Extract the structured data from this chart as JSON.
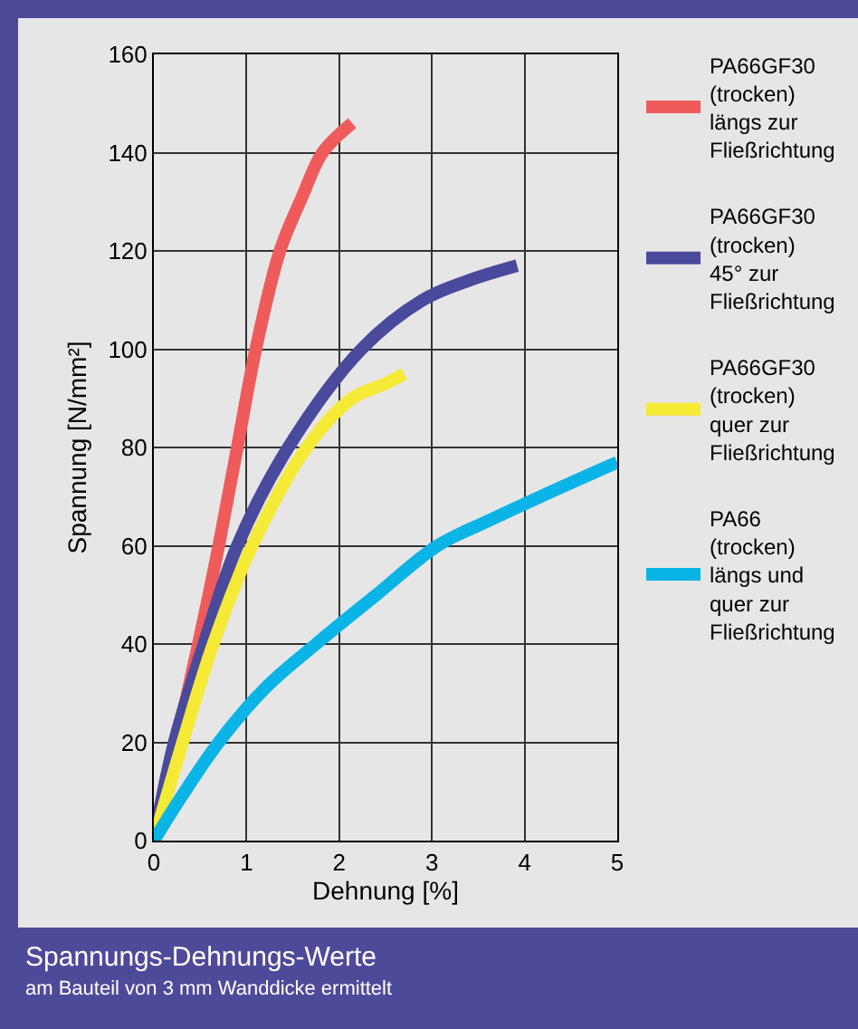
{
  "chart_data": {
    "type": "line",
    "title": "Spannungs-Dehnungs-Werte",
    "subtitle": "am Bauteil von 3 mm Wanddicke ermittelt",
    "xlabel": "Dehnung [%]",
    "ylabel": "Spannung [N/mm²]",
    "xlim": [
      0,
      5
    ],
    "xticks": [
      0,
      1,
      2,
      3,
      4,
      5
    ],
    "ylim": [
      0,
      160
    ],
    "yticks": [
      0,
      20,
      40,
      60,
      80,
      100,
      120,
      140,
      160
    ],
    "grid": true,
    "legend": "right",
    "marker": "none",
    "line_style": "solid",
    "series": [
      {
        "name": "PA66GF30\n(trocken)\nlängs zur\nFließrichtung",
        "color": "#ef5b5b",
        "x": [
          0,
          0.48,
          0.7,
          0.9,
          1.1,
          1.36,
          1.6,
          1.82,
          2.14
        ],
        "values": [
          0,
          40,
          60,
          80,
          100,
          120,
          131,
          140,
          146
        ]
      },
      {
        "name": "PA66GF30\n(trocken)\n45° zur\nFließrichtung",
        "color": "#4a4a9c",
        "x": [
          0,
          0.22,
          0.54,
          0.9,
          1.45,
          2.24,
          2.9,
          3.4,
          3.92
        ],
        "values": [
          0,
          20,
          40,
          60,
          80,
          100,
          110,
          114,
          117
        ]
      },
      {
        "name": "PA66GF30\n(trocken)\nquer zur\nFließrichtung",
        "color": "#f5ea36",
        "x": [
          0,
          0.31,
          0.64,
          1.06,
          1.65,
          2.14,
          2.5,
          2.7
        ],
        "values": [
          0,
          20,
          40,
          60,
          80,
          90,
          93,
          95
        ]
      },
      {
        "name": "PA66\n(trocken)\nlängs und\nquer zur\nFließrichtung",
        "color": "#0bb4e6",
        "x": [
          0,
          0.3,
          0.7,
          1.2,
          1.75,
          2.4,
          3.06,
          3.6,
          4.17,
          5
        ],
        "values": [
          0,
          9,
          20,
          31,
          40,
          50,
          60,
          65,
          70,
          77
        ]
      }
    ]
  }
}
